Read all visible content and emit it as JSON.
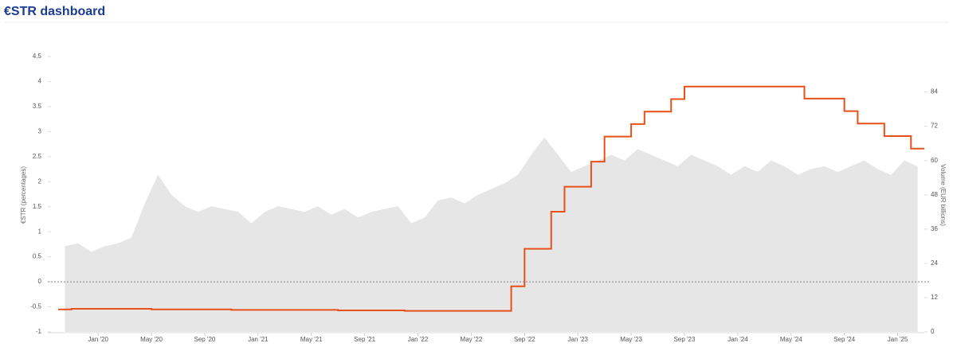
{
  "chart_data": {
    "type": "combo",
    "title": "€STR dashboard",
    "y_label": "€STR (percentages)",
    "y2_label": "Volume (EUR billions)",
    "x": [
      "2019-10",
      "2019-11",
      "2019-12",
      "2020-01",
      "2020-02",
      "2020-03",
      "2020-04",
      "2020-05",
      "2020-06",
      "2020-07",
      "2020-08",
      "2020-09",
      "2020-10",
      "2020-11",
      "2020-12",
      "2021-01",
      "2021-02",
      "2021-03",
      "2021-04",
      "2021-05",
      "2021-06",
      "2021-07",
      "2021-08",
      "2021-09",
      "2021-10",
      "2021-11",
      "2021-12",
      "2022-01",
      "2022-02",
      "2022-03",
      "2022-04",
      "2022-05",
      "2022-06",
      "2022-07",
      "2022-08",
      "2022-09",
      "2022-10",
      "2022-11",
      "2022-12",
      "2023-01",
      "2023-02",
      "2023-03",
      "2023-04",
      "2023-05",
      "2023-06",
      "2023-07",
      "2023-08",
      "2023-09",
      "2023-10",
      "2023-11",
      "2023-12",
      "2024-01",
      "2024-02",
      "2024-03",
      "2024-04",
      "2024-05",
      "2024-06",
      "2024-07",
      "2024-08",
      "2024-09",
      "2024-10",
      "2024-11",
      "2024-12",
      "2025-01",
      "2025-02"
    ],
    "series": [
      {
        "type": "area",
        "axis": "y2",
        "color": "#e6e6e6",
        "values": [
          30,
          31,
          28,
          30,
          31,
          33,
          45,
          55,
          48,
          44,
          42,
          44,
          43,
          42,
          38,
          42,
          44,
          43,
          42,
          44,
          41,
          43,
          40,
          42,
          43,
          44,
          38,
          40,
          46,
          47,
          45,
          48,
          50,
          52,
          55,
          62,
          68,
          62,
          56,
          58,
          60,
          62,
          60,
          64,
          62,
          60,
          58,
          62,
          60,
          58,
          55,
          58,
          56,
          60,
          58,
          55,
          57,
          58,
          56,
          58,
          60,
          57,
          55,
          60,
          58
        ]
      },
      {
        "type": "line",
        "step": true,
        "color": "#e8501a",
        "values": [
          -0.55,
          -0.54,
          -0.54,
          -0.54,
          -0.54,
          -0.54,
          -0.54,
          -0.55,
          -0.55,
          -0.55,
          -0.55,
          -0.55,
          -0.55,
          -0.56,
          -0.56,
          -0.56,
          -0.56,
          -0.56,
          -0.56,
          -0.56,
          -0.56,
          -0.57,
          -0.57,
          -0.57,
          -0.57,
          -0.57,
          -0.58,
          -0.58,
          -0.58,
          -0.58,
          -0.58,
          -0.58,
          -0.58,
          -0.58,
          -0.09,
          0.66,
          0.66,
          1.4,
          1.9,
          1.9,
          2.4,
          2.9,
          2.9,
          3.15,
          3.4,
          3.4,
          3.65,
          3.9,
          3.9,
          3.9,
          3.9,
          3.9,
          3.9,
          3.9,
          3.9,
          3.9,
          3.66,
          3.66,
          3.66,
          3.41,
          3.16,
          3.16,
          2.91,
          2.91,
          2.66
        ]
      }
    ],
    "xlim": [
      "2019-10",
      "2025-03"
    ],
    "xticks": [
      {
        "value": "2020-01",
        "label": "Jan '20"
      },
      {
        "value": "2020-05",
        "label": "May '20"
      },
      {
        "value": "2020-09",
        "label": "Sep '20"
      },
      {
        "value": "2021-01",
        "label": "Jan '21"
      },
      {
        "value": "2021-05",
        "label": "May '21"
      },
      {
        "value": "2021-09",
        "label": "Sep '21"
      },
      {
        "value": "2022-01",
        "label": "Jan '22"
      },
      {
        "value": "2022-05",
        "label": "May '22"
      },
      {
        "value": "2022-09",
        "label": "Sep '22"
      },
      {
        "value": "2023-01",
        "label": "Jan '23"
      },
      {
        "value": "2023-05",
        "label": "May '23"
      },
      {
        "value": "2023-09",
        "label": "Sep '23"
      },
      {
        "value": "2024-01",
        "label": "Jan '24"
      },
      {
        "value": "2024-05",
        "label": "May '24"
      },
      {
        "value": "2024-09",
        "label": "Sep '24"
      },
      {
        "value": "2025-01",
        "label": "Jan '25"
      }
    ],
    "ylim": [
      -1,
      4.5
    ],
    "yticks": [
      -1,
      -0.5,
      0,
      0.5,
      1,
      1.5,
      2,
      2.5,
      3,
      3.5,
      4,
      4.5
    ],
    "y2lim": [
      0,
      96.4
    ],
    "y2ticks": [
      0,
      12,
      24,
      36,
      48,
      60,
      72,
      84
    ],
    "zero_line": true
  }
}
